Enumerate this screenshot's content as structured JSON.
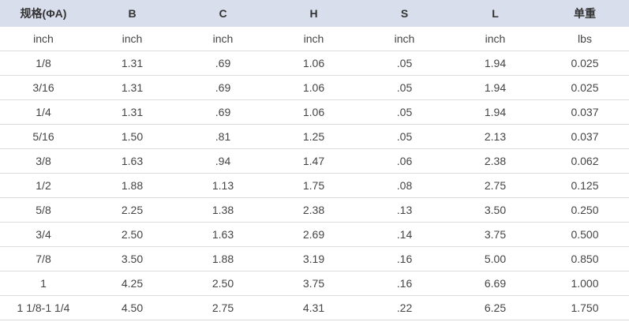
{
  "table": {
    "columns": [
      "规格(ΦA)",
      "B",
      "C",
      "H",
      "S",
      "L",
      "单重"
    ],
    "units": [
      "inch",
      "inch",
      "inch",
      "inch",
      "inch",
      "inch",
      "lbs"
    ],
    "rows": [
      [
        "1/8",
        "1.31",
        ".69",
        "1.06",
        ".05",
        "1.94",
        "0.025"
      ],
      [
        "3/16",
        "1.31",
        ".69",
        "1.06",
        ".05",
        "1.94",
        "0.025"
      ],
      [
        "1/4",
        "1.31",
        ".69",
        "1.06",
        ".05",
        "1.94",
        "0.037"
      ],
      [
        "5/16",
        "1.50",
        ".81",
        "1.25",
        ".05",
        "2.13",
        "0.037"
      ],
      [
        "3/8",
        "1.63",
        ".94",
        "1.47",
        ".06",
        "2.38",
        "0.062"
      ],
      [
        "1/2",
        "1.88",
        "1.13",
        "1.75",
        ".08",
        "2.75",
        "0.125"
      ],
      [
        "5/8",
        "2.25",
        "1.38",
        "2.38",
        ".13",
        "3.50",
        "0.250"
      ],
      [
        "3/4",
        "2.50",
        "1.63",
        "2.69",
        ".14",
        "3.75",
        "0.500"
      ],
      [
        "7/8",
        "3.50",
        "1.88",
        "3.19",
        ".16",
        "5.00",
        "0.850"
      ],
      [
        "1",
        "4.25",
        "2.50",
        "3.75",
        ".16",
        "6.69",
        "1.000"
      ],
      [
        "1 1/8-1 1/4",
        "4.50",
        "2.75",
        "4.31",
        ".22",
        "6.25",
        "1.750"
      ]
    ]
  },
  "colors": {
    "header_bg": "#d9deec",
    "row_border": "#dcdcdc",
    "text": "#444444"
  }
}
